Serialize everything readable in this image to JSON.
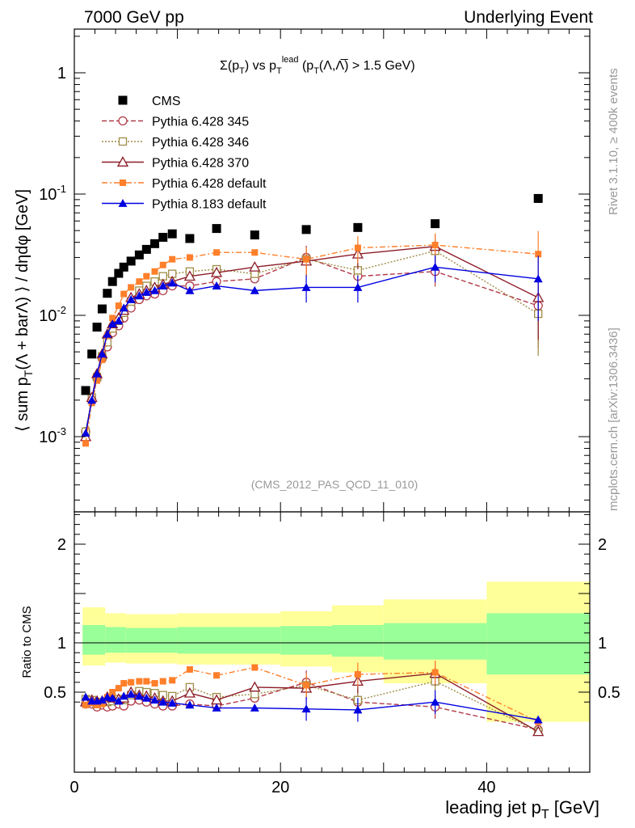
{
  "header": {
    "left": "7000 GeV pp",
    "right": "Underlying Event"
  },
  "side_labels": {
    "rivet": "Rivet 3.1.10, ≥ 400k events",
    "mcplots": "mcplots.cern.ch [arXiv:1306.3436]"
  },
  "plot_title": "Σ(p_T) vs p_T^lead (p_T(Λ,Λ̅) > 1.5 GeV)",
  "analysis_id": "(CMS_2012_PAS_QCD_11_010)",
  "axes": {
    "ylabel_main": "⟨ sum p_T(Λ + barΛ) ⟩ / dηdφ [GeV]",
    "ylabel_ratio": "Ratio to CMS",
    "xlabel": "leading jet p_T [GeV]"
  },
  "colors": {
    "cms": "#000000",
    "py345": "#b03a48",
    "py346": "#a08c46",
    "py370": "#8c1c28",
    "pydef": "#ff7f2a",
    "py8": "#0000e0",
    "band_inner": "#99ff99",
    "band_outer": "#ffff99"
  },
  "chart_data": [
    {
      "type": "scatter",
      "title": "Σ(p_T) vs p_T^lead (p_T(Λ,Λ̅) > 1.5 GeV)",
      "xlabel": "leading jet p_T [GeV]",
      "ylabel": "⟨ sum p_T(Λ + barΛ) ⟩ / dηdφ [GeV]",
      "xlim": [
        0,
        50
      ],
      "ylim": [
        0.00025,
        2.5
      ],
      "yscale": "log",
      "y_ticks": [
        "10^-3",
        "10^-2",
        "10^-1",
        "1"
      ],
      "x_ticks": [
        0,
        20,
        40
      ],
      "legend_position": "top-left",
      "x": [
        1.1,
        1.7,
        2.2,
        2.7,
        3.2,
        3.7,
        4.3,
        4.8,
        5.5,
        6.3,
        7.0,
        7.8,
        8.6,
        9.5,
        11.2,
        13.8,
        17.5,
        22.5,
        27.5,
        35.0,
        45.0
      ],
      "series": [
        {
          "name": "CMS",
          "marker": "filled-square",
          "style": "none",
          "values": [
            0.0024,
            0.0048,
            0.008,
            0.0113,
            0.0152,
            0.019,
            0.0222,
            0.025,
            0.028,
            0.0315,
            0.035,
            0.039,
            0.044,
            0.047,
            0.043,
            0.052,
            0.046,
            0.051,
            0.053,
            0.057,
            0.092
          ]
        },
        {
          "name": "Pythia 6.428 345",
          "marker": "open-circle",
          "style": "dashed",
          "values": [
            0.0011,
            0.002,
            0.003,
            0.0044,
            0.0055,
            0.0072,
            0.0082,
            0.0095,
            0.0115,
            0.0135,
            0.0145,
            0.015,
            0.016,
            0.0175,
            0.0175,
            0.019,
            0.02,
            0.03,
            0.021,
            0.023,
            0.012
          ]
        },
        {
          "name": "Pythia 6.428 346",
          "marker": "open-square",
          "style": "dotted",
          "values": [
            0.0011,
            0.0021,
            0.0031,
            0.0046,
            0.006,
            0.0078,
            0.009,
            0.0105,
            0.013,
            0.016,
            0.0175,
            0.019,
            0.021,
            0.022,
            0.023,
            0.024,
            0.022,
            0.029,
            0.0235,
            0.034,
            0.0103
          ]
        },
        {
          "name": "Pythia 6.428 370",
          "marker": "open-triangle",
          "style": "solid",
          "values": [
            0.001,
            0.0021,
            0.0033,
            0.0048,
            0.007,
            0.0085,
            0.0095,
            0.011,
            0.014,
            0.015,
            0.016,
            0.017,
            0.018,
            0.019,
            0.021,
            0.0225,
            0.025,
            0.028,
            0.032,
            0.037,
            0.014
          ]
        },
        {
          "name": "Pythia 6.428 default",
          "marker": "filled-small-square",
          "style": "dashdot",
          "values": [
            0.00088,
            0.0019,
            0.0029,
            0.0043,
            0.0068,
            0.0095,
            0.012,
            0.015,
            0.017,
            0.019,
            0.021,
            0.023,
            0.026,
            0.029,
            0.03,
            0.033,
            0.033,
            0.029,
            0.036,
            0.038,
            0.032
          ]
        },
        {
          "name": "Pythia 8.183 default",
          "marker": "filled-triangle",
          "style": "solid",
          "values": [
            0.00107,
            0.002,
            0.0033,
            0.0048,
            0.007,
            0.0085,
            0.009,
            0.0115,
            0.0135,
            0.0145,
            0.0155,
            0.016,
            0.0175,
            0.0185,
            0.016,
            0.0175,
            0.016,
            0.017,
            0.017,
            0.025,
            0.02
          ]
        }
      ]
    },
    {
      "type": "line",
      "ylabel": "Ratio to CMS",
      "xlabel": "leading jet p_T [GeV]",
      "xlim": [
        0,
        50
      ],
      "ylim": [
        0.35,
        2.35
      ],
      "y_ticks": [
        0.5,
        1,
        2
      ],
      "x_ticks": [
        0,
        20,
        40
      ],
      "x": [
        1.1,
        1.7,
        2.2,
        2.7,
        3.2,
        3.7,
        4.3,
        4.8,
        5.5,
        6.3,
        7.0,
        7.8,
        8.6,
        9.5,
        11.2,
        13.8,
        17.5,
        22.5,
        27.5,
        35.0,
        45.0
      ],
      "uncertainty_bands": {
        "bin_edges": [
          0.8,
          3,
          5,
          10,
          20,
          25,
          30,
          40,
          50
        ],
        "inner_high": [
          1.18,
          1.16,
          1.15,
          1.16,
          1.17,
          1.18,
          1.2,
          1.3
        ],
        "inner_low": [
          0.88,
          0.9,
          0.9,
          0.89,
          0.88,
          0.86,
          0.83,
          0.68
        ],
        "outer_high": [
          1.36,
          1.3,
          1.29,
          1.3,
          1.32,
          1.38,
          1.44,
          1.62
        ],
        "outer_low": [
          0.77,
          0.8,
          0.79,
          0.78,
          0.76,
          0.7,
          0.59,
          0.2
        ]
      },
      "series": [
        {
          "name": "Pythia 6.428 345",
          "values": [
            0.38,
            0.38,
            0.35,
            0.37,
            0.35,
            0.36,
            0.38,
            0.36,
            0.41,
            0.42,
            0.4,
            0.38,
            0.36,
            0.36,
            0.38,
            0.36,
            0.44,
            0.6,
            0.4,
            0.35,
            0.12
          ]
        },
        {
          "name": "Pythia 6.428 346",
          "values": [
            0.43,
            0.42,
            0.38,
            0.4,
            0.4,
            0.41,
            0.43,
            0.42,
            0.47,
            0.51,
            0.5,
            0.49,
            0.47,
            0.46,
            0.55,
            0.45,
            0.48,
            0.57,
            0.42,
            0.61,
            0.1
          ]
        },
        {
          "name": "Pythia 6.428 370",
          "values": [
            0.4,
            0.42,
            0.41,
            0.41,
            0.45,
            0.44,
            0.43,
            0.44,
            0.5,
            0.47,
            0.46,
            0.44,
            0.41,
            0.41,
            0.49,
            0.42,
            0.55,
            0.54,
            0.61,
            0.69,
            0.1
          ]
        },
        {
          "name": "Pythia 6.428 default",
          "values": [
            0.37,
            0.39,
            0.37,
            0.38,
            0.45,
            0.5,
            0.54,
            0.59,
            0.6,
            0.61,
            0.61,
            0.59,
            0.61,
            0.62,
            0.73,
            0.67,
            0.75,
            0.57,
            0.68,
            0.7,
            0.2
          ]
        },
        {
          "name": "Pythia 8.183 default",
          "values": [
            0.45,
            0.41,
            0.41,
            0.42,
            0.45,
            0.44,
            0.41,
            0.46,
            0.48,
            0.46,
            0.44,
            0.42,
            0.4,
            0.39,
            0.37,
            0.34,
            0.34,
            0.33,
            0.32,
            0.4,
            0.22
          ]
        }
      ]
    }
  ]
}
